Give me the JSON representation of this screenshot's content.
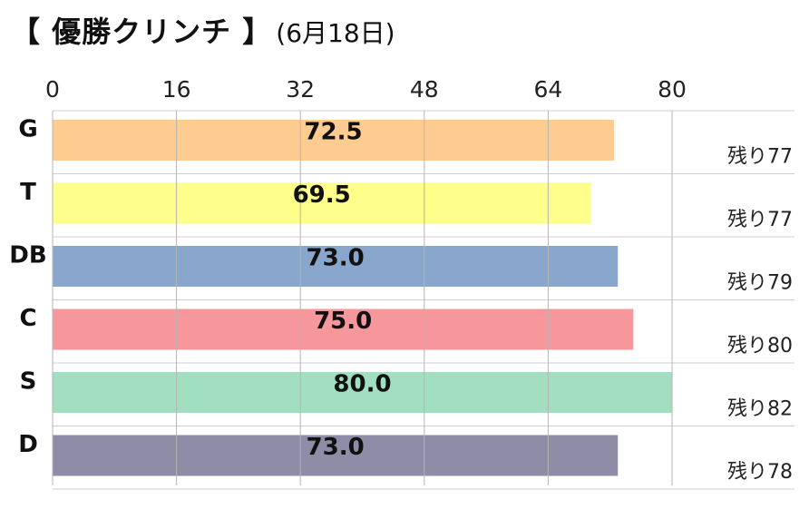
{
  "title": {
    "main": "【 優勝クリンチ 】",
    "sub": "(6月18日)"
  },
  "chart_data": {
    "type": "bar",
    "orientation": "horizontal",
    "categories": [
      "G",
      "T",
      "DB",
      "C",
      "S",
      "D"
    ],
    "values": [
      72.5,
      69.5,
      73.0,
      75.0,
      80.0,
      73.0
    ],
    "value_labels": [
      "72.5",
      "69.5",
      "73.0",
      "75.0",
      "80.0",
      "73.0"
    ],
    "remaining_labels": [
      "残り77",
      "残り77",
      "残り79",
      "残り80",
      "残り82",
      "残り78"
    ],
    "colors": [
      "#FECB90",
      "#FEFE8A",
      "#89A6CC",
      "#F5979B",
      "#A2DEC0",
      "#8E8CA6"
    ],
    "xlim": [
      0,
      80
    ],
    "ticks": [
      0,
      16,
      32,
      48,
      64,
      80
    ],
    "tick_labels": [
      "0",
      "16",
      "32",
      "48",
      "64",
      "80"
    ],
    "xlabel": "",
    "ylabel": "",
    "grid": true,
    "axis_position": "top"
  }
}
